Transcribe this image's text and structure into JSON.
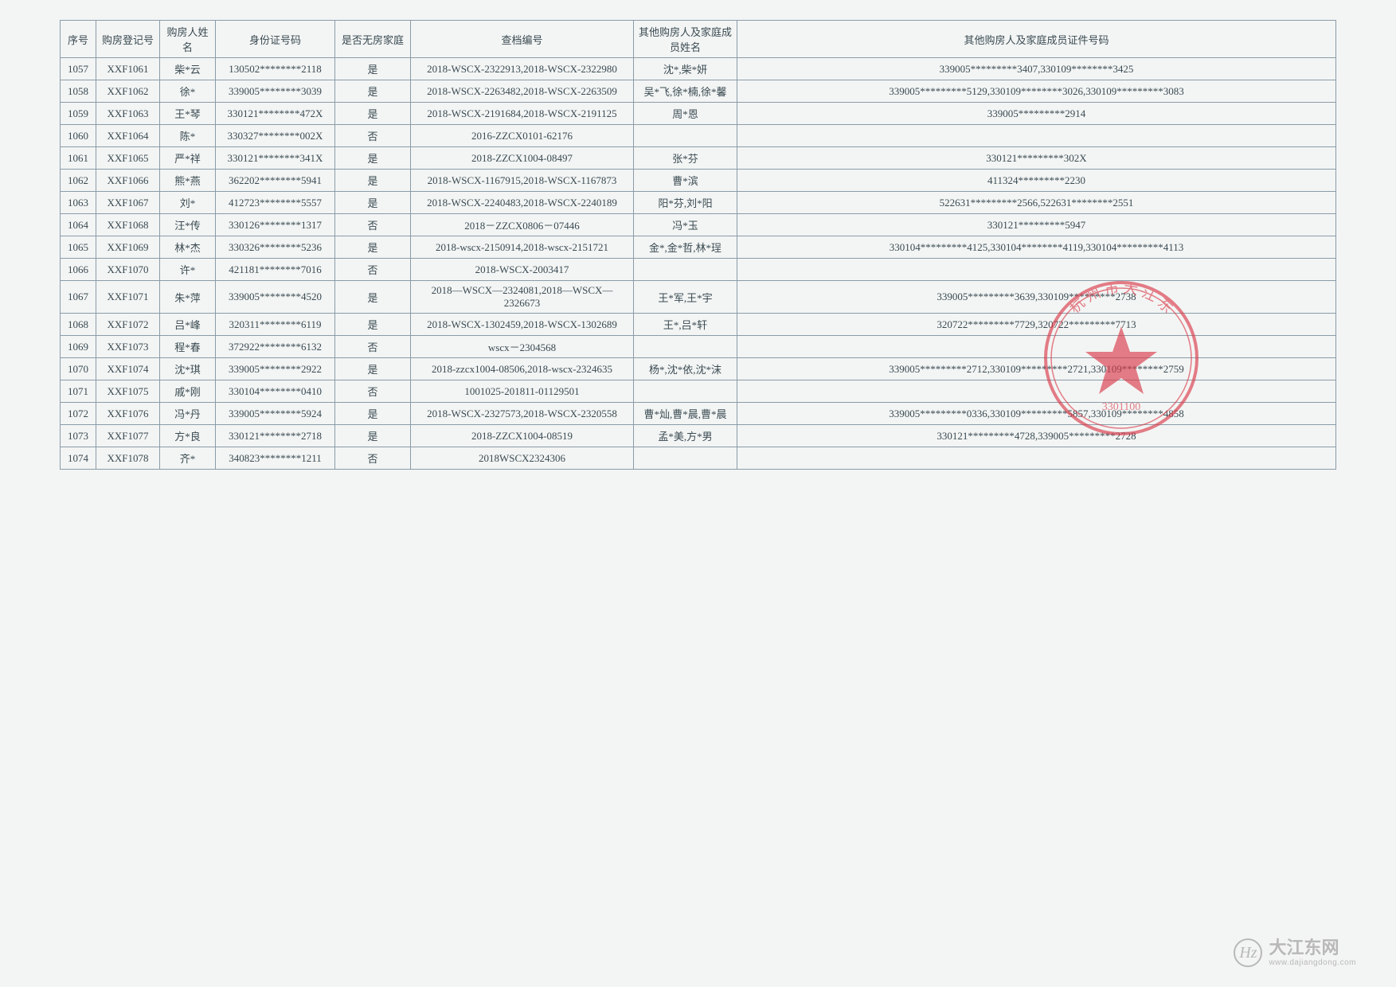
{
  "table": {
    "headers": {
      "seq": "序号",
      "reg": "购房登记号",
      "name": "购房人姓名",
      "id": "身份证号码",
      "nohouse": "是否无房家庭",
      "archive": "查档编号",
      "other_name": "其他购房人及家庭成员姓名",
      "other_id": "其他购房人及家庭成员证件号码"
    },
    "rows": [
      {
        "seq": "1057",
        "reg": "XXF1061",
        "name": "柴*云",
        "id": "130502********2118",
        "nohouse": "是",
        "archive": "2018-WSCX-2322913,2018-WSCX-2322980",
        "other_name": "沈*,柴*妍",
        "other_id": "339005*********3407,330109********3425"
      },
      {
        "seq": "1058",
        "reg": "XXF1062",
        "name": "徐*",
        "id": "339005********3039",
        "nohouse": "是",
        "archive": "2018-WSCX-2263482,2018-WSCX-2263509",
        "other_name": "吴*飞,徐*楠,徐*馨",
        "other_id": "339005*********5129,330109********3026,330109*********3083"
      },
      {
        "seq": "1059",
        "reg": "XXF1063",
        "name": "王*琴",
        "id": "330121********472X",
        "nohouse": "是",
        "archive": "2018-WSCX-2191684,2018-WSCX-2191125",
        "other_name": "周*恩",
        "other_id": "339005*********2914"
      },
      {
        "seq": "1060",
        "reg": "XXF1064",
        "name": "陈*",
        "id": "330327********002X",
        "nohouse": "否",
        "archive": "2016-ZZCX0101-62176",
        "other_name": "",
        "other_id": ""
      },
      {
        "seq": "1061",
        "reg": "XXF1065",
        "name": "严*祥",
        "id": "330121********341X",
        "nohouse": "是",
        "archive": "2018-ZZCX1004-08497",
        "other_name": "张*芬",
        "other_id": "330121*********302X"
      },
      {
        "seq": "1062",
        "reg": "XXF1066",
        "name": "熊*燕",
        "id": "362202********5941",
        "nohouse": "是",
        "archive": "2018-WSCX-1167915,2018-WSCX-1167873",
        "other_name": "曹*滨",
        "other_id": "411324*********2230"
      },
      {
        "seq": "1063",
        "reg": "XXF1067",
        "name": "刘*",
        "id": "412723********5557",
        "nohouse": "是",
        "archive": "2018-WSCX-2240483,2018-WSCX-2240189",
        "other_name": "阳*芬,刘*阳",
        "other_id": "522631*********2566,522631********2551"
      },
      {
        "seq": "1064",
        "reg": "XXF1068",
        "name": "汪*传",
        "id": "330126********1317",
        "nohouse": "否",
        "archive": "2018－ZZCX0806－07446",
        "other_name": "冯*玉",
        "other_id": "330121*********5947"
      },
      {
        "seq": "1065",
        "reg": "XXF1069",
        "name": "林*杰",
        "id": "330326********5236",
        "nohouse": "是",
        "archive": "2018-wscx-2150914,2018-wscx-2151721",
        "other_name": "金*,金*哲,林*珵",
        "other_id": "330104*********4125,330104********4119,330104*********4113"
      },
      {
        "seq": "1066",
        "reg": "XXF1070",
        "name": "许*",
        "id": "421181********7016",
        "nohouse": "否",
        "archive": "2018-WSCX-2003417",
        "other_name": "",
        "other_id": ""
      },
      {
        "seq": "1067",
        "reg": "XXF1071",
        "name": "朱*萍",
        "id": "339005********4520",
        "nohouse": "是",
        "archive": "2018—WSCX—2324081,2018—WSCX—2326673",
        "other_name": "王*军,王*宇",
        "other_id": "339005*********3639,330109*********2738"
      },
      {
        "seq": "1068",
        "reg": "XXF1072",
        "name": "吕*峰",
        "id": "320311********6119",
        "nohouse": "是",
        "archive": "2018-WSCX-1302459,2018-WSCX-1302689",
        "other_name": "王*,吕*轩",
        "other_id": "320722*********7729,320722*********7713"
      },
      {
        "seq": "1069",
        "reg": "XXF1073",
        "name": "程*春",
        "id": "372922********6132",
        "nohouse": "否",
        "archive": "wscx－2304568",
        "other_name": "",
        "other_id": ""
      },
      {
        "seq": "1070",
        "reg": "XXF1074",
        "name": "沈*琪",
        "id": "339005********2922",
        "nohouse": "是",
        "archive": "2018-zzcx1004-08506,2018-wscx-2324635",
        "other_name": "杨*,沈*依,沈*沫",
        "other_id": "339005*********2712,330109*********2721,330109********2759"
      },
      {
        "seq": "1071",
        "reg": "XXF1075",
        "name": "戚*刚",
        "id": "330104********0410",
        "nohouse": "否",
        "archive": "1001025-201811-01129501",
        "other_name": "",
        "other_id": ""
      },
      {
        "seq": "1072",
        "reg": "XXF1076",
        "name": "冯*丹",
        "id": "339005********5924",
        "nohouse": "是",
        "archive": "2018-WSCX-2327573,2018-WSCX-2320558",
        "other_name": "曹*灿,曹*晨,曹*晨",
        "other_id": "339005*********0336,330109*********5857,330109********4858"
      },
      {
        "seq": "1073",
        "reg": "XXF1077",
        "name": "方*良",
        "id": "330121********2718",
        "nohouse": "是",
        "archive": "2018-ZZCX1004-08519",
        "other_name": "孟*美,方*男",
        "other_id": "330121*********4728,339005*********2728"
      },
      {
        "seq": "1074",
        "reg": "XXF1078",
        "name": "齐*",
        "id": "340823********1211",
        "nohouse": "否",
        "archive": "2018WSCX2324306",
        "other_name": "",
        "other_id": ""
      }
    ]
  },
  "stamp": {
    "color": "#d93b4a",
    "star_color": "#d93b4a"
  },
  "watermark": {
    "logo": "Hz",
    "cn": "大江东网",
    "en": "www.dajiangdong.com",
    "color": "#b8b8b8"
  }
}
